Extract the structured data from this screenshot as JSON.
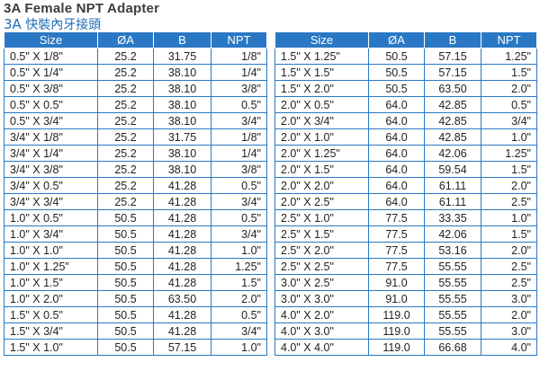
{
  "title": "3A Female  NPT  Adapter",
  "subtitle": {
    "code": "3A",
    "text": "快裝內牙接頭"
  },
  "headers": {
    "size": "Size",
    "a": "ØA",
    "b": "B",
    "npt": "NPT"
  },
  "left_rows": [
    [
      "0.5\" X 1/8\"",
      "25.2",
      "31.75",
      "1/8\""
    ],
    [
      "0.5\" X 1/4\"",
      "25.2",
      "38.10",
      "1/4\""
    ],
    [
      "0.5\" X 3/8\"",
      "25.2",
      "38.10",
      "3/8\""
    ],
    [
      "0.5\" X 0.5\"",
      "25.2",
      "38.10",
      "0.5\""
    ],
    [
      "0.5\" X 3/4\"",
      "25.2",
      "38.10",
      "3/4\""
    ],
    [
      "3/4\" X 1/8\"",
      "25.2",
      "31.75",
      "1/8\""
    ],
    [
      "3/4\" X 1/4\"",
      "25.2",
      "38.10",
      "1/4\""
    ],
    [
      "3/4\" X 3/8\"",
      "25.2",
      "38.10",
      "3/8\""
    ],
    [
      "3/4\" X 0.5\"",
      "25.2",
      "41.28",
      "0.5\""
    ],
    [
      "3/4\" X 3/4\"",
      "25.2",
      "41.28",
      "3/4\""
    ],
    [
      "1.0\" X 0.5\"",
      "50.5",
      "41.28",
      "0.5\""
    ],
    [
      "1.0\" X 3/4\"",
      "50.5",
      "41.28",
      "3/4\""
    ],
    [
      "1.0\" X 1.0\"",
      "50.5",
      "41.28",
      "1.0\""
    ],
    [
      "1.0\" X 1.25\"",
      "50.5",
      "41.28",
      "1.25\""
    ],
    [
      "1.0\" X 1.5\"",
      "50.5",
      "41.28",
      "1.5\""
    ],
    [
      "1.0\" X 2.0\"",
      "50.5",
      "63.50",
      "2.0\""
    ],
    [
      "1.5\" X 0.5\"",
      "50.5",
      "41.28",
      "0.5\""
    ],
    [
      "1.5\" X 3/4\"",
      "50.5",
      "41.28",
      "3/4\""
    ],
    [
      "1.5\" X 1.0\"",
      "50.5",
      "57.15",
      "1.0\""
    ]
  ],
  "right_rows": [
    [
      "1.5\" X 1.25\"",
      "50.5",
      "57.15",
      "1.25\""
    ],
    [
      "1.5\" X 1.5\"",
      "50.5",
      "57.15",
      "1.5\""
    ],
    [
      "1.5\" X 2.0\"",
      "50.5",
      "63.50",
      "2.0\""
    ],
    [
      "2.0\" X 0.5\"",
      "64.0",
      "42.85",
      "0.5\""
    ],
    [
      "2.0\" X 3/4\"",
      "64.0",
      "42.85",
      "3/4\""
    ],
    [
      "2.0\" X 1.0\"",
      "64.0",
      "42.85",
      "1.0\""
    ],
    [
      "2.0\" X 1.25\"",
      "64.0",
      "42.06",
      "1.25\""
    ],
    [
      "2.0\" X 1.5\"",
      "64.0",
      "59.54",
      "1.5\""
    ],
    [
      "2.0\" X 2.0\"",
      "64.0",
      "61.11",
      "2.0\""
    ],
    [
      "2.0\" X 2.5\"",
      "64.0",
      "61.11",
      "2.5\""
    ],
    [
      "2.5\" X 1.0\"",
      "77.5",
      "33.35",
      "1.0\""
    ],
    [
      "2.5\" X 1.5\"",
      "77.5",
      "42.06",
      "1.5\""
    ],
    [
      "2.5\" X 2.0\"",
      "77.5",
      "53.16",
      "2.0\""
    ],
    [
      "2.5\" X 2.5\"",
      "77.5",
      "55.55",
      "2.5\""
    ],
    [
      "3.0\" X 2.5\"",
      "91.0",
      "55.55",
      "2.5\""
    ],
    [
      "3.0\" X 3.0\"",
      "91.0",
      "55.55",
      "3.0\""
    ],
    [
      "4.0\" X 2.0\"",
      "119.0",
      "55.55",
      "2.0\""
    ],
    [
      "4.0\" X 3.0\"",
      "119.0",
      "55.55",
      "3.0\""
    ],
    [
      "4.0\" X 4.0\"",
      "119.0",
      "66.68",
      "4.0\""
    ]
  ]
}
